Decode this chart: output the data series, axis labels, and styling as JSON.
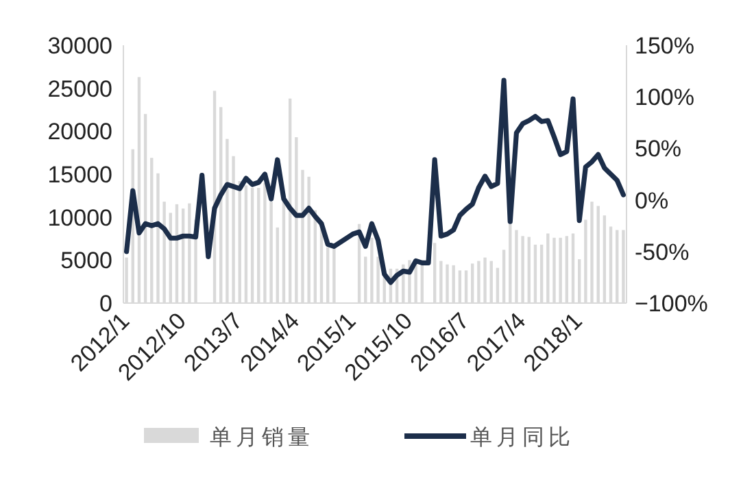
{
  "chart_data": {
    "type": "bar",
    "categories": [
      "2012/1",
      null,
      null,
      null,
      null,
      null,
      null,
      null,
      null,
      "2012/10",
      null,
      null,
      null,
      null,
      null,
      null,
      null,
      null,
      "2013/7",
      null,
      null,
      null,
      null,
      null,
      null,
      null,
      null,
      "2014/4",
      null,
      null,
      null,
      null,
      null,
      null,
      null,
      null,
      "2015/1",
      null,
      null,
      null,
      null,
      null,
      null,
      null,
      null,
      "2015/10",
      null,
      null,
      null,
      null,
      null,
      null,
      null,
      null,
      "2016/7",
      null,
      null,
      null,
      null,
      null,
      null,
      null,
      null,
      "2017/4",
      null,
      null,
      null,
      null,
      null,
      null,
      null,
      null,
      "2018/1",
      null,
      null,
      null,
      null,
      null,
      null,
      null
    ],
    "series": [
      {
        "name": "单月销量",
        "color": "#d9d9d9",
        "values": [
          5300,
          17900,
          26300,
          22000,
          16900,
          15100,
          11800,
          10500,
          11500,
          11000,
          11600,
          9700,
          null,
          null,
          24700,
          22800,
          19100,
          17100,
          14200,
          13700,
          13400,
          13400,
          14000,
          11800,
          8800,
          12000,
          23800,
          19300,
          15500,
          14700,
          10800,
          9200,
          6500,
          6500,
          null,
          null,
          null,
          9200,
          5400,
          7600,
          5400,
          3500,
          4000,
          4000,
          4500,
          5000,
          4800,
          5000,
          null,
          7000,
          4900,
          4500,
          4400,
          3800,
          3800,
          4600,
          4900,
          5300,
          4900,
          4100,
          6200,
          9200,
          8500,
          7800,
          7700,
          6800,
          6800,
          8100,
          7600,
          7600,
          7800,
          8100,
          5100,
          9700,
          11800,
          11300,
          10200,
          8900,
          8500,
          8500
        ]
      },
      {
        "name": "单月同比",
        "type": "line",
        "axis": "y2",
        "color": "#1c2e4a",
        "values": [
          -50,
          9,
          -32,
          -23,
          -25,
          -23,
          -28,
          -37,
          -37,
          -35,
          -35,
          -36,
          24,
          -55,
          -8,
          5,
          15,
          13,
          11,
          21,
          15,
          17,
          25,
          1,
          39,
          1,
          -8,
          -15,
          -15,
          -8,
          -16,
          -23,
          -43,
          -45,
          -41,
          -37,
          -33,
          -31,
          -45,
          -23,
          -39,
          -72,
          -80,
          -73,
          -69,
          -70,
          -59,
          -61,
          -61,
          39,
          -35,
          -33,
          -29,
          -15,
          -9,
          -4,
          12,
          23,
          13,
          16,
          116,
          -21,
          65,
          74,
          77,
          81,
          76,
          77,
          61,
          44,
          47,
          98,
          -20,
          32,
          37,
          44,
          31,
          25,
          19,
          5
        ]
      }
    ],
    "ylim": [
      0,
      30000
    ],
    "yticks": [
      0,
      5000,
      10000,
      15000,
      20000,
      25000,
      30000
    ],
    "y2lim": [
      -100,
      150
    ],
    "y2ticks": [
      {
        "value": -100,
        "label": "−100%"
      },
      {
        "value": -50,
        "label": "-50%"
      },
      {
        "value": 0,
        "label": "0%"
      },
      {
        "value": 50,
        "label": "50%"
      },
      {
        "value": 100,
        "label": "100%"
      },
      {
        "value": 150,
        "label": "150%"
      }
    ],
    "legend": "bottom"
  }
}
